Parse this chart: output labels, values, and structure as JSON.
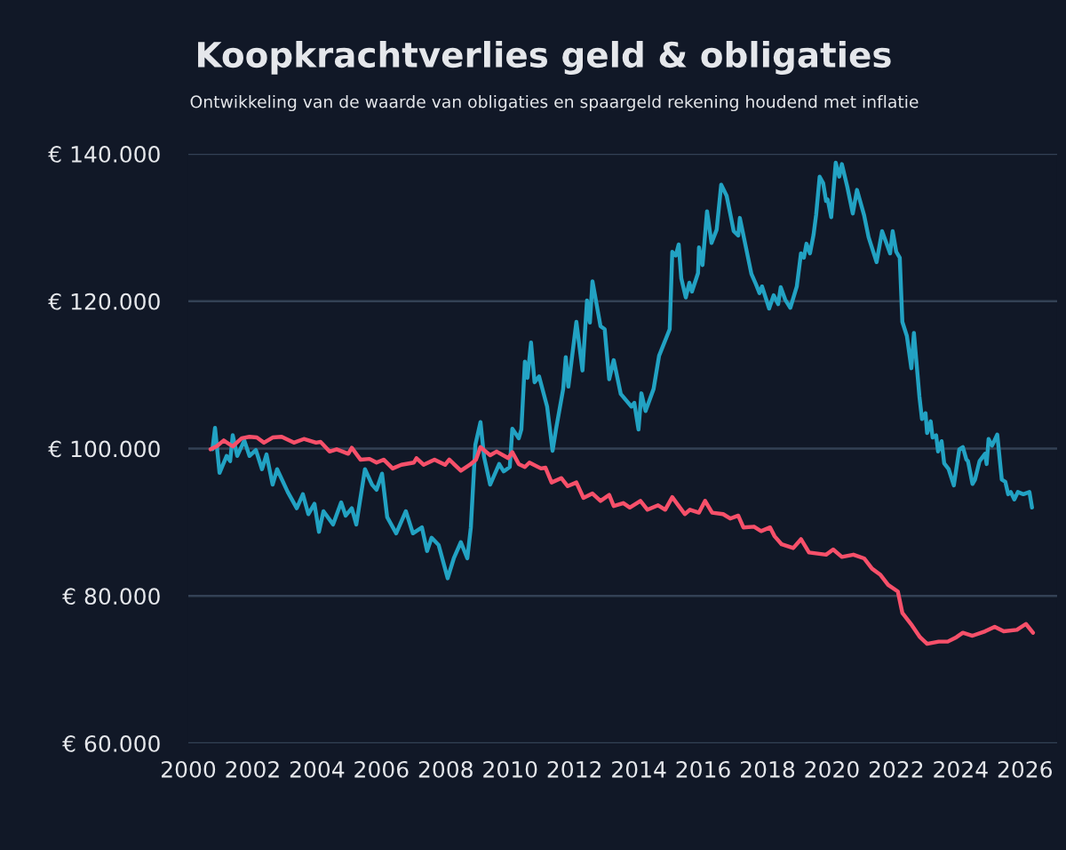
{
  "chart_data": {
    "type": "line",
    "title": "Koopkrachtverlies geld & obligaties",
    "subtitle": "Ontwikkeling van de waarde van obligaties en spaargeld rekening houdend met inflatie",
    "xlim": [
      2000,
      2027
    ],
    "xticks": [
      2000,
      2002,
      2004,
      2006,
      2008,
      2010,
      2012,
      2014,
      2016,
      2018,
      2020,
      2022,
      2024,
      2026
    ],
    "ylim": [
      60000,
      140000
    ],
    "yticks": [
      {
        "value": 60000,
        "label": "€ 60.000"
      },
      {
        "value": 80000,
        "label": "€ 80.000"
      },
      {
        "value": 100000,
        "label": "€ 100.000"
      },
      {
        "value": 120000,
        "label": "€ 120.000"
      },
      {
        "value": 140000,
        "label": "€ 140.000"
      }
    ],
    "grid": "y",
    "marker": "none",
    "line_style": "solid",
    "series": [
      {
        "color": "#22a2c3",
        "x": [
          2000.75,
          2000.83,
          2000.97,
          2001.19,
          2001.3,
          2001.38,
          2001.52,
          2001.74,
          2001.9,
          2002.1,
          2002.29,
          2002.43,
          2002.62,
          2002.76,
          2003.09,
          2003.37,
          2003.56,
          2003.73,
          2003.92,
          2004.06,
          2004.2,
          2004.5,
          2004.75,
          2004.89,
          2005.08,
          2005.22,
          2005.49,
          2005.71,
          2005.85,
          2006.02,
          2006.18,
          2006.46,
          2006.76,
          2006.98,
          2007.26,
          2007.42,
          2007.56,
          2007.78,
          2008.06,
          2008.25,
          2008.47,
          2008.67,
          2008.78,
          2008.92,
          2009.08,
          2009.19,
          2009.38,
          2009.66,
          2009.8,
          2009.99,
          2010.07,
          2010.27,
          2010.35,
          2010.46,
          2010.54,
          2010.65,
          2010.76,
          2010.9,
          2011.15,
          2011.32,
          2011.43,
          2011.65,
          2011.73,
          2011.81,
          2012.06,
          2012.25,
          2012.39,
          2012.48,
          2012.56,
          2012.81,
          2012.94,
          2013.08,
          2013.22,
          2013.44,
          2013.77,
          2013.86,
          2013.99,
          2014.08,
          2014.21,
          2014.46,
          2014.63,
          2014.96,
          2015.04,
          2015.15,
          2015.24,
          2015.32,
          2015.46,
          2015.57,
          2015.65,
          2015.84,
          2015.87,
          2015.98,
          2016.12,
          2016.26,
          2016.42,
          2016.56,
          2016.73,
          2016.95,
          2017.09,
          2017.14,
          2017.5,
          2017.64,
          2017.75,
          2017.83,
          2018.05,
          2018.19,
          2018.33,
          2018.41,
          2018.55,
          2018.71,
          2018.91,
          2019.04,
          2019.13,
          2019.21,
          2019.32,
          2019.43,
          2019.51,
          2019.62,
          2019.73,
          2019.82,
          2019.87,
          2019.98,
          2020.12,
          2020.23,
          2020.31,
          2020.48,
          2020.65,
          2020.78,
          2021.0,
          2021.14,
          2021.39,
          2021.56,
          2021.81,
          2021.89,
          2022.0,
          2022.11,
          2022.19,
          2022.33,
          2022.47,
          2022.55,
          2022.72,
          2022.8,
          2022.91,
          2022.96,
          2023.07,
          2023.13,
          2023.24,
          2023.3,
          2023.41,
          2023.49,
          2023.63,
          2023.79,
          2023.96,
          2024.07,
          2024.18,
          2024.23,
          2024.37,
          2024.45,
          2024.59,
          2024.76,
          2024.81,
          2024.87,
          2024.98,
          2025.14,
          2025.28,
          2025.39,
          2025.48,
          2025.56,
          2025.67,
          2025.78,
          2025.95,
          2026.14,
          2026.22
        ],
        "values": [
          99900,
          102800,
          96700,
          99000,
          98300,
          101800,
          99000,
          101100,
          99000,
          99800,
          97200,
          99200,
          95100,
          97200,
          94100,
          91900,
          93800,
          91100,
          92500,
          88700,
          91500,
          89700,
          92700,
          90900,
          91900,
          89700,
          97200,
          95100,
          94400,
          96600,
          90700,
          88500,
          91500,
          88500,
          89300,
          86100,
          87900,
          86900,
          82400,
          85100,
          87300,
          85100,
          89300,
          100500,
          103600,
          98900,
          95100,
          97900,
          96900,
          97500,
          102700,
          101400,
          102600,
          111800,
          109600,
          114400,
          109000,
          109800,
          105700,
          99700,
          102700,
          108100,
          112400,
          108400,
          117200,
          110600,
          120100,
          117100,
          122700,
          116600,
          116200,
          109400,
          112000,
          107400,
          105700,
          106200,
          102600,
          107500,
          105100,
          108100,
          112600,
          116200,
          126700,
          126200,
          127700,
          123100,
          120500,
          122500,
          121300,
          123800,
          127300,
          124900,
          132200,
          127900,
          129700,
          135800,
          134300,
          129500,
          128900,
          131300,
          123700,
          122300,
          121100,
          122000,
          119000,
          120800,
          119600,
          121900,
          120200,
          119100,
          122000,
          126500,
          125900,
          127800,
          126500,
          129000,
          131700,
          136900,
          136000,
          133600,
          133800,
          131400,
          138800,
          136900,
          138600,
          135500,
          131900,
          135100,
          131700,
          128700,
          125300,
          129500,
          126500,
          129500,
          126700,
          125900,
          117200,
          115300,
          110900,
          115700,
          107100,
          104000,
          104800,
          102100,
          103700,
          101500,
          101800,
          99600,
          101000,
          98000,
          97200,
          95000,
          99900,
          100200,
          98500,
          98300,
          95200,
          95800,
          98300,
          99300,
          97900,
          101300,
          100400,
          101900,
          95800,
          95500,
          93800,
          94100,
          93100,
          94100,
          93800,
          94100,
          92000
        ]
      },
      {
        "color": "#f7506a",
        "x": [
          2000.69,
          2000.88,
          2001.1,
          2001.38,
          2001.66,
          2001.9,
          2002.13,
          2002.35,
          2002.62,
          2002.9,
          2003.28,
          2003.59,
          2003.97,
          2004.11,
          2004.39,
          2004.61,
          2004.97,
          2005.08,
          2005.35,
          2005.63,
          2005.85,
          2006.07,
          2006.35,
          2006.62,
          2007.01,
          2007.09,
          2007.31,
          2007.65,
          2007.98,
          2008.11,
          2008.47,
          2008.75,
          2008.94,
          2009.08,
          2009.38,
          2009.58,
          2009.94,
          2010.07,
          2010.27,
          2010.46,
          2010.6,
          2010.96,
          2011.1,
          2011.29,
          2011.59,
          2011.79,
          2012.06,
          2012.28,
          2012.56,
          2012.81,
          2013.08,
          2013.22,
          2013.52,
          2013.72,
          2014.05,
          2014.27,
          2014.6,
          2014.82,
          2015.04,
          2015.43,
          2015.59,
          2015.87,
          2016.06,
          2016.28,
          2016.62,
          2016.84,
          2017.09,
          2017.25,
          2017.58,
          2017.8,
          2018.08,
          2018.22,
          2018.44,
          2018.8,
          2019.04,
          2019.29,
          2019.82,
          2020.04,
          2020.31,
          2020.67,
          2021.0,
          2021.25,
          2021.5,
          2021.75,
          2022.05,
          2022.19,
          2022.49,
          2022.74,
          2022.96,
          2023.32,
          2023.6,
          2023.87,
          2024.07,
          2024.37,
          2024.76,
          2025.06,
          2025.34,
          2025.75,
          2026.03,
          2026.25
        ],
        "values": [
          99900,
          100300,
          101100,
          100300,
          101400,
          101600,
          101500,
          100800,
          101500,
          101600,
          100800,
          101300,
          100800,
          100900,
          99600,
          99900,
          99300,
          100100,
          98500,
          98600,
          98100,
          98500,
          97300,
          97800,
          98100,
          98700,
          97800,
          98500,
          97800,
          98500,
          97000,
          97800,
          98500,
          100200,
          99100,
          99600,
          98700,
          99500,
          97900,
          97500,
          98100,
          97300,
          97400,
          95400,
          96000,
          94900,
          95400,
          93300,
          93900,
          92900,
          93700,
          92200,
          92600,
          92000,
          92900,
          91700,
          92300,
          91700,
          93400,
          91100,
          91700,
          91300,
          92900,
          91300,
          91100,
          90500,
          90900,
          89300,
          89400,
          88800,
          89300,
          88100,
          87000,
          86500,
          87700,
          85900,
          85600,
          86300,
          85300,
          85600,
          85100,
          83700,
          82900,
          81500,
          80600,
          77700,
          76000,
          74400,
          73500,
          73800,
          73800,
          74400,
          75000,
          74600,
          75200,
          75800,
          75200,
          75400,
          76200,
          75000
        ]
      }
    ]
  }
}
